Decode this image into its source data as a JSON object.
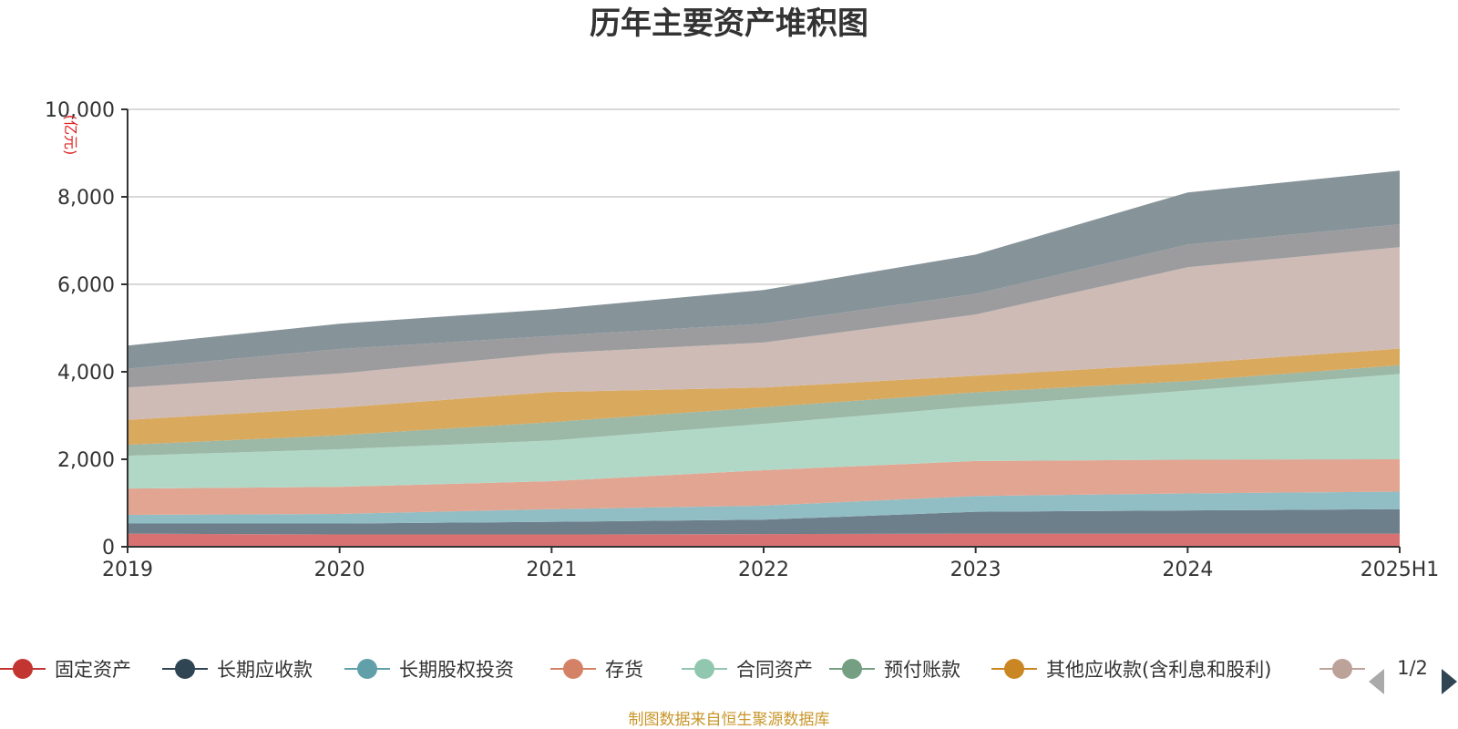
{
  "chart_data": {
    "type": "area",
    "stacked": true,
    "title": "历年主要资产堆积图",
    "unit": "亿元",
    "ylim": [
      0,
      10000
    ],
    "yticks": [
      0,
      2000,
      4000,
      6000,
      8000,
      10000
    ],
    "ytick_labels": [
      "0",
      "2,000",
      "4,000",
      "6,000",
      "8,000",
      "10,000"
    ],
    "x": [
      "2019",
      "2020",
      "2021",
      "2022",
      "2023",
      "2024",
      "2025H1"
    ],
    "grid": true,
    "series": [
      {
        "name": "固定资产",
        "color": "#d87272",
        "legend_color": "#c23531",
        "values": [
          300,
          280,
          280,
          290,
          300,
          300,
          300
        ]
      },
      {
        "name": "长期应收款",
        "color": "#6e7f8c",
        "legend_color": "#2f4554",
        "values": [
          230,
          250,
          290,
          330,
          500,
          530,
          560
        ]
      },
      {
        "name": "长期股权投资",
        "color": "#91bec4",
        "legend_color": "#61a0a8",
        "values": [
          200,
          220,
          290,
          320,
          360,
          390,
          400
        ]
      },
      {
        "name": "存货",
        "color": "#e2a592",
        "legend_color": "#d48265",
        "values": [
          600,
          620,
          640,
          810,
          800,
          770,
          740
        ]
      },
      {
        "name": "合同资产",
        "color": "#b1d8c7",
        "legend_color": "#91c7ae",
        "values": [
          750,
          860,
          930,
          1060,
          1250,
          1580,
          1950
        ]
      },
      {
        "name": "预付账款",
        "color": "#9cb8a6",
        "legend_color": "#749f83",
        "values": [
          250,
          320,
          420,
          380,
          320,
          220,
          200
        ]
      },
      {
        "name": "其他应收款(含利息和股利)",
        "color": "#d9a95e",
        "legend_color": "#ca8622",
        "values": [
          570,
          630,
          690,
          450,
          380,
          400,
          380
        ]
      },
      {
        "name": "",
        "color": "#cfbbb5",
        "legend_color": "#bda29a",
        "values": [
          740,
          780,
          880,
          1030,
          1400,
          2200,
          2320
        ]
      },
      {
        "name": "",
        "color": "#9c9c9f",
        "values": [
          430,
          560,
          400,
          430,
          470,
          520,
          520
        ]
      },
      {
        "name": "",
        "color": "#869399",
        "values": [
          530,
          580,
          610,
          770,
          900,
          1190,
          1230
        ]
      }
    ]
  },
  "legend": {
    "page_text": "1/2"
  },
  "source": "制图数据来自恒生聚源数据库"
}
